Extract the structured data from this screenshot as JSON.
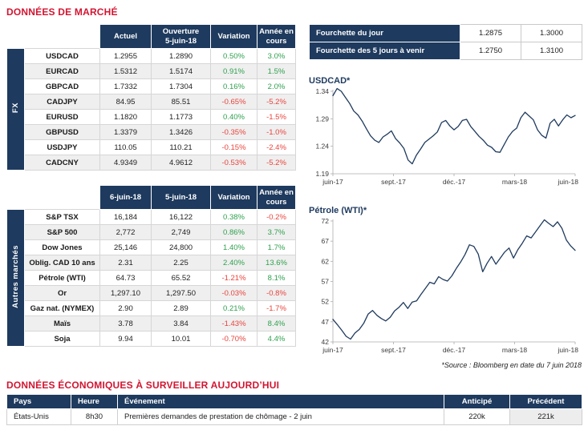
{
  "page": {
    "title_market": "DONNÉES DE MARCHÉ",
    "title_econ": "DONNÉES ÉCONOMIQUES À SURVEILLER AUJOURD’HUI",
    "source_note": "*Source : Bloomberg en date du  7 juin 2018"
  },
  "colors": {
    "navy": "#1e3a5e",
    "red": "#d21531",
    "positive": "#2fa14e",
    "negative": "#e8443c"
  },
  "fx_table": {
    "group_label": "FX",
    "headers": [
      "Actuel",
      "Ouverture\n5-juin-18",
      "Variation",
      "Année en\ncours"
    ],
    "rows": [
      {
        "label": "USDCAD",
        "c1": "1.2955",
        "c2": "1.2890",
        "variation": "0.50%",
        "ytd": "3.0%"
      },
      {
        "label": "EURCAD",
        "c1": "1.5312",
        "c2": "1.5174",
        "variation": "0.91%",
        "ytd": "1.5%"
      },
      {
        "label": "GBPCAD",
        "c1": "1.7332",
        "c2": "1.7304",
        "variation": "0.16%",
        "ytd": "2.0%"
      },
      {
        "label": "CADJPY",
        "c1": "84.95",
        "c2": "85.51",
        "variation": "-0.65%",
        "ytd": "-5.2%"
      },
      {
        "label": "EURUSD",
        "c1": "1.1820",
        "c2": "1.1773",
        "variation": "0.40%",
        "ytd": "-1.5%"
      },
      {
        "label": "GBPUSD",
        "c1": "1.3379",
        "c2": "1.3426",
        "variation": "-0.35%",
        "ytd": "-1.0%"
      },
      {
        "label": "USDJPY",
        "c1": "110.05",
        "c2": "110.21",
        "variation": "-0.15%",
        "ytd": "-2.4%"
      },
      {
        "label": "CADCNY",
        "c1": "4.9349",
        "c2": "4.9612",
        "variation": "-0.53%",
        "ytd": "-5.2%"
      }
    ]
  },
  "markets_table": {
    "group_label": "Autres marchés",
    "headers": [
      "6-juin-18",
      "5-juin-18",
      "Variation",
      "Année en\ncours"
    ],
    "rows": [
      {
        "label": "S&P TSX",
        "c1": "16,184",
        "c2": "16,122",
        "variation": "0.38%",
        "ytd": "-0.2%"
      },
      {
        "label": "S&P 500",
        "c1": "2,772",
        "c2": "2,749",
        "variation": "0.86%",
        "ytd": "3.7%"
      },
      {
        "label": "Dow Jones",
        "c1": "25,146",
        "c2": "24,800",
        "variation": "1.40%",
        "ytd": "1.7%"
      },
      {
        "label": "Oblig. CAD 10 ans",
        "c1": "2.31",
        "c2": "2.25",
        "variation": "2.40%",
        "ytd": "13.6%"
      },
      {
        "label": "Pétrole (WTI)",
        "c1": "64.73",
        "c2": "65.52",
        "variation": "-1.21%",
        "ytd": "8.1%"
      },
      {
        "label": "Or",
        "c1": "1,297.10",
        "c2": "1,297.50",
        "variation": "-0.03%",
        "ytd": "-0.8%"
      },
      {
        "label": "Gaz nat. (NYMEX)",
        "c1": "2.90",
        "c2": "2.89",
        "variation": "0.21%",
        "ytd": "-1.7%"
      },
      {
        "label": "Maïs",
        "c1": "3.78",
        "c2": "3.84",
        "variation": "-1.43%",
        "ytd": "8.4%"
      },
      {
        "label": "Soja",
        "c1": "9.94",
        "c2": "10.01",
        "variation": "-0.70%",
        "ytd": "4.4%"
      }
    ]
  },
  "ranges": {
    "rows": [
      {
        "label": "Fourchette du jour",
        "low": "1.2875",
        "high": "1.3000"
      },
      {
        "label": "Fourchette des 5 jours à venir",
        "low": "1.2750",
        "high": "1.3100"
      }
    ]
  },
  "chart_data": [
    {
      "type": "line",
      "title": "USDCAD*",
      "x_labels": [
        "juin-17",
        "sept.-17",
        "déc.-17",
        "mars-18",
        "juin-18"
      ],
      "ylim": [
        1.19,
        1.34
      ],
      "yticks": [
        "1.34",
        "1.29",
        "1.24",
        "1.19"
      ],
      "grid": false,
      "legend": false,
      "line_color": "#1e3a5e",
      "series": [
        {
          "name": "USDCAD",
          "values": [
            1.332,
            1.345,
            1.34,
            1.329,
            1.318,
            1.304,
            1.297,
            1.286,
            1.272,
            1.259,
            1.251,
            1.247,
            1.257,
            1.262,
            1.268,
            1.254,
            1.246,
            1.236,
            1.215,
            1.208,
            1.224,
            1.235,
            1.247,
            1.253,
            1.259,
            1.266,
            1.283,
            1.287,
            1.277,
            1.27,
            1.276,
            1.287,
            1.289,
            1.276,
            1.267,
            1.258,
            1.251,
            1.242,
            1.238,
            1.23,
            1.229,
            1.243,
            1.257,
            1.267,
            1.273,
            1.292,
            1.302,
            1.295,
            1.288,
            1.27,
            1.26,
            1.255,
            1.282,
            1.289,
            1.277,
            1.288,
            1.297,
            1.292,
            1.296
          ]
        }
      ]
    },
    {
      "type": "line",
      "title": "Pétrole (WTI)*",
      "x_labels": [
        "juin-17",
        "sept.-17",
        "déc.-17",
        "mars-18",
        "juin-18"
      ],
      "ylim": [
        42,
        72
      ],
      "yticks": [
        "72",
        "67",
        "62",
        "57",
        "52",
        "47",
        "42"
      ],
      "grid": false,
      "legend": false,
      "line_color": "#1e3a5e",
      "series": [
        {
          "name": "WTI",
          "values": [
            47.6,
            46.3,
            44.9,
            43.4,
            42.7,
            44.2,
            45.1,
            46.6,
            48.9,
            49.8,
            48.6,
            47.8,
            47.2,
            48.1,
            49.7,
            50.6,
            51.8,
            50.3,
            51.9,
            52.2,
            53.8,
            55.3,
            56.8,
            56.4,
            58.2,
            57.5,
            57.1,
            58.4,
            60.2,
            61.8,
            63.7,
            66.1,
            65.7,
            63.8,
            59.4,
            61.5,
            63.2,
            61.3,
            62.8,
            64.3,
            65.3,
            62.8,
            64.9,
            66.5,
            68.3,
            67.8,
            69.3,
            70.8,
            72.3,
            71.4,
            70.6,
            71.8,
            70.2,
            67.3,
            65.8,
            64.7
          ]
        }
      ]
    }
  ],
  "econ_table": {
    "headers": [
      "Pays",
      "Heure",
      "Événement",
      "Anticipé",
      "Précédent"
    ],
    "rows": [
      {
        "pays": "États-Unis",
        "heure": "8h30",
        "evenement": "Premières demandes de prestation de chômage - 2 juin",
        "anticipe": "220k",
        "precedent": "221k"
      }
    ]
  }
}
